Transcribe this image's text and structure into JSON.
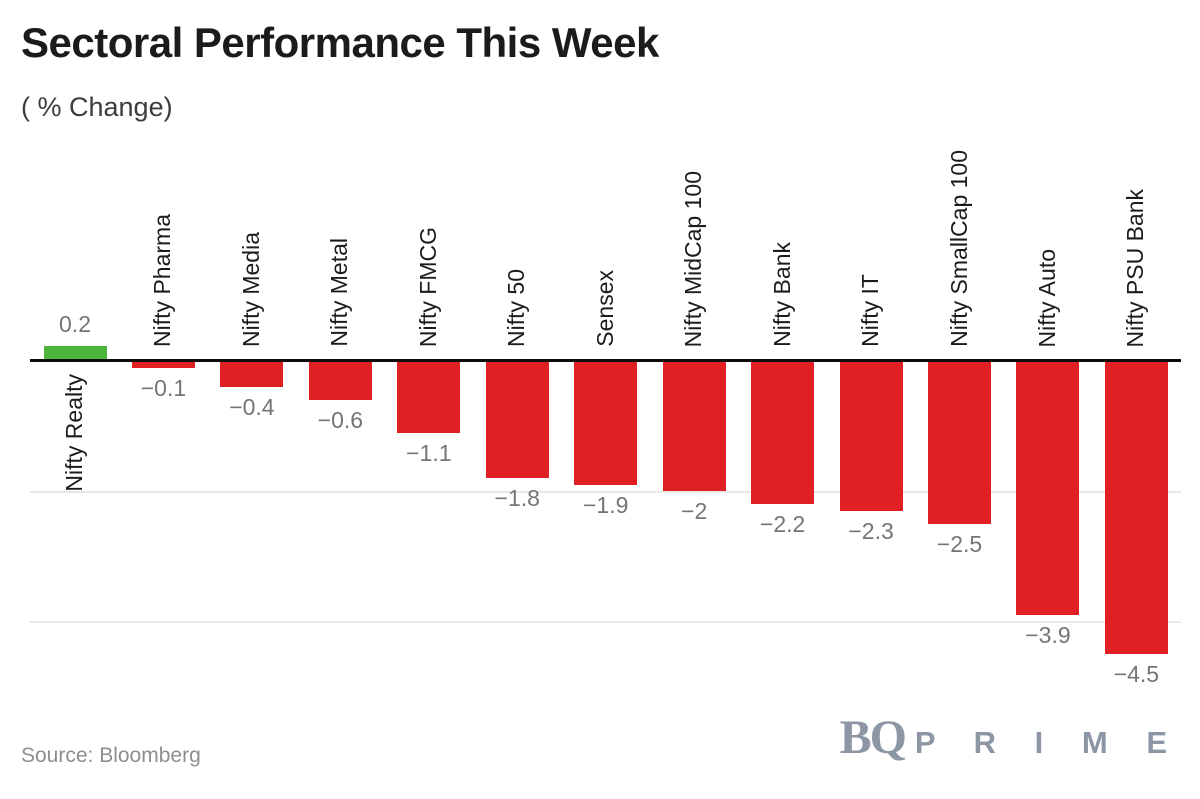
{
  "header": {
    "title": "Sectoral Performance This Week",
    "subtitle": "( % Change)"
  },
  "footer": {
    "source": "Source: Bloomberg",
    "logo_bq": "BQ",
    "logo_prime": "P R I M E"
  },
  "colors": {
    "positive_bar": "#4db43c",
    "negative_bar": "#e12026",
    "axis": "#0b0b0b",
    "gridline": "#e8e8e8",
    "category_label": "#1c1c1c",
    "value_label": "#757575",
    "logo": "#8c96a4"
  },
  "chart_data": {
    "type": "bar",
    "title": "Sectoral Performance This Week",
    "subtitle": "( % Change)",
    "unit": "% change week-on-week",
    "orientation": "vertical",
    "categories": [
      "Nifty Realty",
      "Nifty Pharma",
      "Nifty Media",
      "Nifty Metal",
      "Nifty FMCG",
      "Nifty 50",
      "Sensex",
      "Nifty MidCap 100",
      "Nifty Bank",
      "Nifty IT",
      "Nifty SmallCap 100",
      "Nifty Auto",
      "Nifty PSU Bank"
    ],
    "values": [
      0.2,
      -0.1,
      -0.4,
      -0.6,
      -1.1,
      -1.8,
      -1.9,
      -2,
      -2.2,
      -2.3,
      -2.5,
      -3.9,
      -4.5
    ],
    "value_labels": [
      "0.2",
      "−0.1",
      "−0.4",
      "−0.6",
      "−1.1",
      "−1.8",
      "−1.9",
      "−2",
      "−2.2",
      "−2.3",
      "−2.5",
      "−3.9",
      "−4.5"
    ],
    "ylim": [
      -5,
      0.5
    ],
    "gridlines_at": [
      -2,
      -4
    ],
    "grid": "horizontal-light",
    "legend": "none",
    "value_label_position": "outside-end",
    "category_label_rotation": -90
  }
}
